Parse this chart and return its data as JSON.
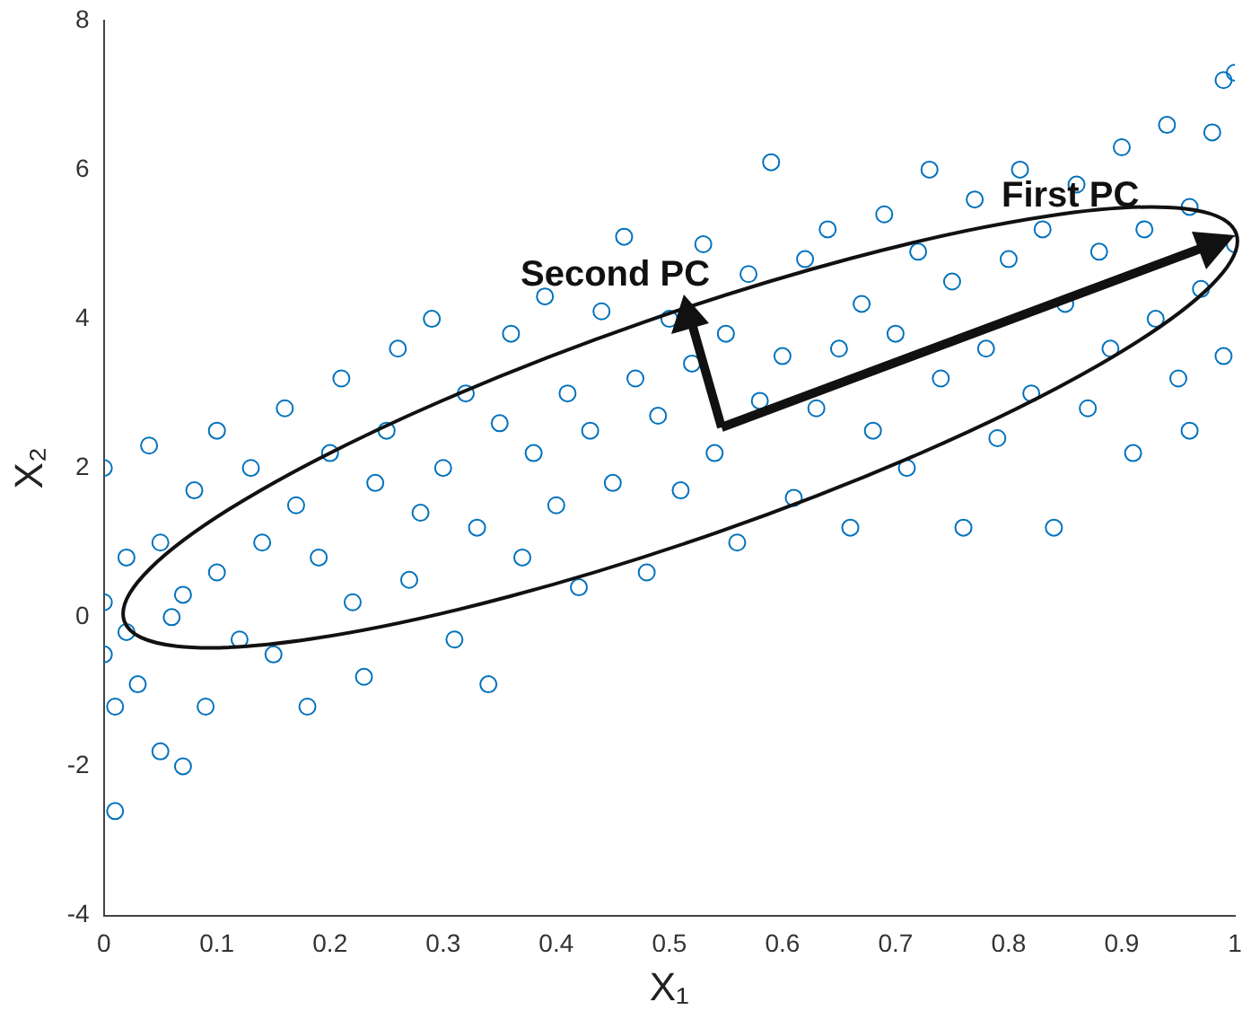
{
  "chart_data": {
    "type": "scatter",
    "xlabel": "X₁",
    "ylabel": "X₂",
    "annotations": [
      "First PC",
      "Second PC"
    ],
    "marker": "circle",
    "grid": false,
    "legend": false,
    "xlim": [
      0,
      1
    ],
    "xticks": [
      0,
      0.1,
      0.2,
      0.3,
      0.4,
      0.5,
      0.6,
      0.7,
      0.8,
      0.9,
      1
    ],
    "ylim": [
      -4,
      8
    ],
    "yticks": [
      -4,
      -2,
      0,
      2,
      4,
      6,
      8
    ],
    "series": [
      {
        "color": "#0072bd",
        "x": [
          0,
          0,
          0.01,
          0.01,
          0,
          0.02,
          0.03,
          0.04,
          0.05,
          0.05,
          0.07,
          0.07,
          0.08,
          0.09,
          0.1,
          0.1,
          0.12,
          0.13,
          0.14,
          0.15,
          0.16,
          0.17,
          0.18,
          0.19,
          0.2,
          0.21,
          0.22,
          0.23,
          0.24,
          0.25,
          0.26,
          0.27,
          0.28,
          0.29,
          0.3,
          0.31,
          0.32,
          0.33,
          0.34,
          0.35,
          0.36,
          0.37,
          0.38,
          0.39,
          0.4,
          0.41,
          0.42,
          0.43,
          0.44,
          0.45,
          0.46,
          0.47,
          0.48,
          0.49,
          0.5,
          0.51,
          0.52,
          0.53,
          0.54,
          0.55,
          0.56,
          0.57,
          0.58,
          0.59,
          0.6,
          0.61,
          0.62,
          0.63,
          0.64,
          0.65,
          0.66,
          0.67,
          0.68,
          0.69,
          0.7,
          0.71,
          0.72,
          0.73,
          0.74,
          0.75,
          0.76,
          0.77,
          0.78,
          0.79,
          0.8,
          0.81,
          0.82,
          0.83,
          0.84,
          0.85,
          0.86,
          0.87,
          0.88,
          0.89,
          0.9,
          0.91,
          0.92,
          0.93,
          0.94,
          0.95,
          0.96,
          0.96,
          0.97,
          0.98,
          0.99,
          1,
          1,
          0.99,
          0.02,
          0.06
        ],
        "values": [
          0.2,
          -0.5,
          -2.6,
          -1.2,
          2,
          0.8,
          -0.9,
          2.3,
          -1.8,
          1,
          -2,
          0.3,
          1.7,
          -1.2,
          2.5,
          0.6,
          -0.3,
          2,
          1,
          -0.5,
          2.8,
          1.5,
          -1.2,
          0.8,
          2.2,
          3.2,
          0.2,
          -0.8,
          1.8,
          2.5,
          3.6,
          0.5,
          1.4,
          4,
          2,
          -0.3,
          3,
          1.2,
          -0.9,
          2.6,
          3.8,
          0.8,
          2.2,
          4.3,
          1.5,
          3,
          0.4,
          2.5,
          4.1,
          1.8,
          5.1,
          3.2,
          0.6,
          2.7,
          4,
          1.7,
          3.4,
          5,
          2.2,
          3.8,
          1,
          4.6,
          2.9,
          6.1,
          3.5,
          1.6,
          4.8,
          2.8,
          5.2,
          3.6,
          1.2,
          4.2,
          2.5,
          5.4,
          3.8,
          2,
          4.9,
          6,
          3.2,
          4.5,
          1.2,
          5.6,
          3.6,
          2.4,
          4.8,
          6,
          3,
          5.2,
          1.2,
          4.2,
          5.8,
          2.8,
          4.9,
          3.6,
          6.3,
          2.2,
          5.2,
          4,
          6.6,
          3.2,
          5.5,
          2.5,
          4.4,
          6.5,
          7.2,
          7.3,
          5,
          3.5,
          -0.2,
          0
        ]
      }
    ]
  }
}
